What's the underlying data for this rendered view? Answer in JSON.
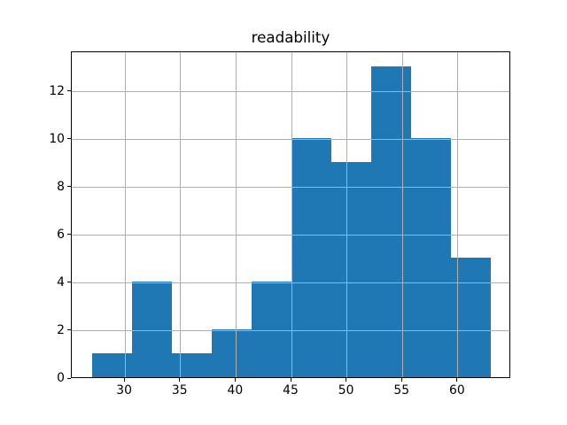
{
  "chart_data": {
    "type": "histogram",
    "title": "readability",
    "xlabel": "",
    "ylabel": "",
    "bin_edges": [
      27.0,
      30.6,
      34.2,
      37.8,
      41.4,
      45.0,
      48.6,
      52.2,
      55.8,
      59.4,
      63.0
    ],
    "counts": [
      1,
      4,
      1,
      2,
      4,
      10,
      9,
      13,
      10,
      5
    ],
    "xticks": [
      30,
      35,
      40,
      45,
      50,
      55,
      60
    ],
    "yticks": [
      0,
      2,
      4,
      6,
      8,
      10,
      12
    ],
    "xlim": [
      25.2,
      64.8
    ],
    "ylim": [
      0,
      13.65
    ],
    "grid": true,
    "grid_above_bars": true,
    "legend": "none",
    "colors": {
      "bar": "#1f77b4",
      "grid": "#b0b0b0",
      "spine": "#000000",
      "text": "#000000",
      "background": "#ffffff"
    }
  }
}
